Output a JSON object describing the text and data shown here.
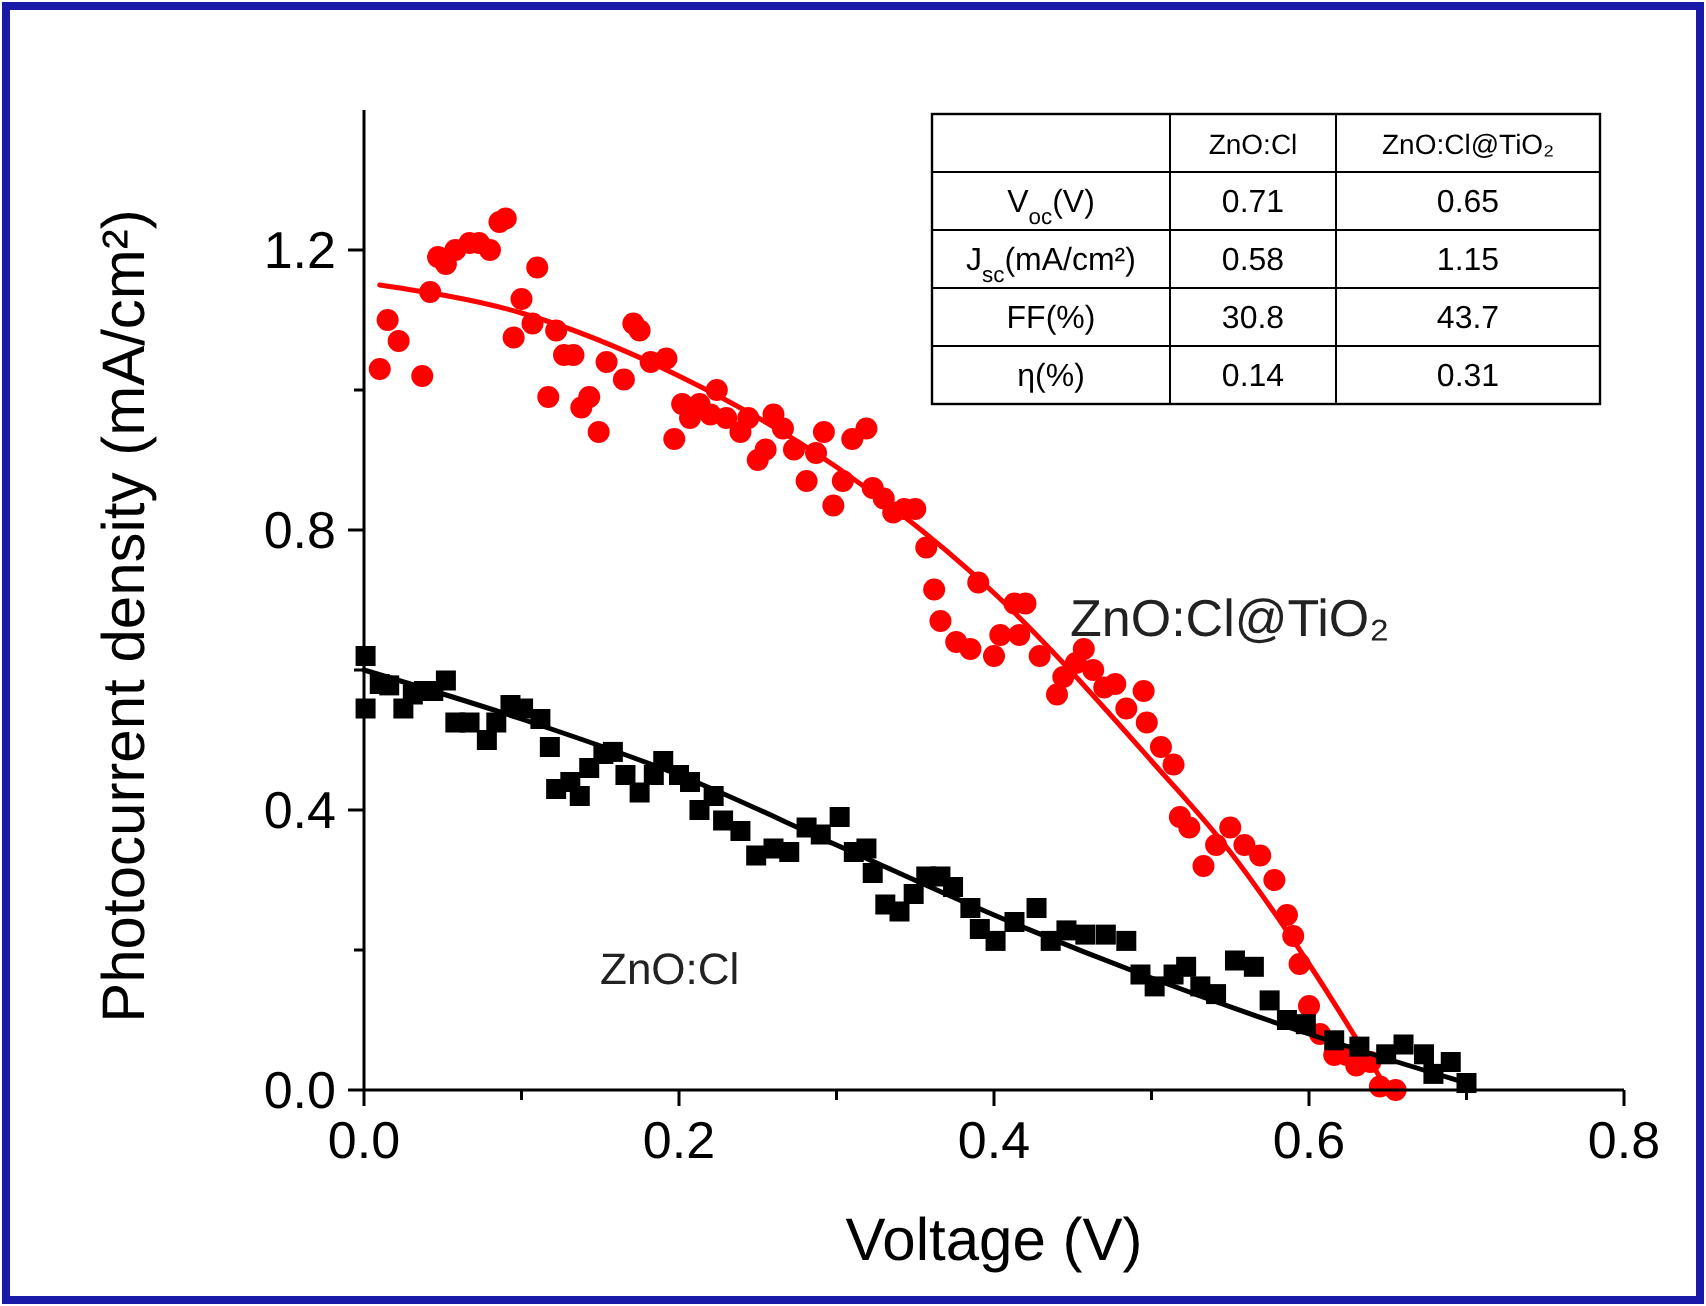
{
  "chart_data": {
    "type": "scatter",
    "xlabel": "Voltage (V)",
    "ylabel": "Photocurrent density (mA/cm²)",
    "xlim": [
      0,
      0.8
    ],
    "ylim": [
      0,
      1.4
    ],
    "xticks": [
      {
        "value": 0,
        "label": "0.0"
      },
      {
        "value": 0.1,
        "label": null
      },
      {
        "value": 0.2,
        "label": "0.2"
      },
      {
        "value": 0.3,
        "label": null
      },
      {
        "value": 0.4,
        "label": "0.4"
      },
      {
        "value": 0.5,
        "label": null
      },
      {
        "value": 0.6,
        "label": "0.6"
      },
      {
        "value": 0.7,
        "label": null
      },
      {
        "value": 0.8,
        "label": "0.8"
      }
    ],
    "yticks": [
      {
        "value": 0,
        "label": "0.0"
      },
      {
        "value": 0.2,
        "label": null
      },
      {
        "value": 0.4,
        "label": "0.4"
      },
      {
        "value": 0.6,
        "label": null
      },
      {
        "value": 0.8,
        "label": "0.8"
      },
      {
        "value": 1.0,
        "label": null
      },
      {
        "value": 1.2,
        "label": "1.2"
      }
    ],
    "grid": false,
    "series": [
      {
        "name": "ZnO:Cl@TiO₂",
        "marker": "circle",
        "color": "#ff0000",
        "x": [
          0.01,
          0.015,
          0.022,
          0.037,
          0.042,
          0.047,
          0.052,
          0.058,
          0.067,
          0.073,
          0.08,
          0.086,
          0.09,
          0.095,
          0.1,
          0.107,
          0.11,
          0.117,
          0.122,
          0.127,
          0.133,
          0.138,
          0.143,
          0.149,
          0.154,
          0.165,
          0.171,
          0.175,
          0.182,
          0.192,
          0.197,
          0.202,
          0.207,
          0.213,
          0.22,
          0.224,
          0.23,
          0.239,
          0.244,
          0.25,
          0.255,
          0.26,
          0.266,
          0.273,
          0.281,
          0.287,
          0.292,
          0.298,
          0.304,
          0.31,
          0.319,
          0.323,
          0.33,
          0.336,
          0.343,
          0.35,
          0.357,
          0.362,
          0.366,
          0.376,
          0.385,
          0.39,
          0.4,
          0.404,
          0.413,
          0.416,
          0.42,
          0.429,
          0.44,
          0.444,
          0.452,
          0.457,
          0.463,
          0.47,
          0.477,
          0.484,
          0.495,
          0.497,
          0.506,
          0.514,
          0.518,
          0.524,
          0.533,
          0.541,
          0.55,
          0.559,
          0.569,
          0.578,
          0.586,
          0.59,
          0.594,
          0.6,
          0.607,
          0.616,
          0.624,
          0.63,
          0.639,
          0.645,
          0.655
        ],
        "values": [
          1.03,
          1.1,
          1.07,
          1.02,
          1.14,
          1.19,
          1.18,
          1.2,
          1.21,
          1.21,
          1.2,
          1.24,
          1.245,
          1.075,
          1.13,
          1.095,
          1.175,
          0.99,
          1.085,
          1.05,
          1.05,
          0.975,
          0.99,
          0.94,
          1.04,
          1.015,
          1.095,
          1.085,
          1.04,
          1.045,
          0.93,
          0.98,
          0.96,
          0.98,
          0.965,
          1.0,
          0.96,
          0.94,
          0.96,
          0.9,
          0.915,
          0.965,
          0.945,
          0.915,
          0.87,
          0.91,
          0.94,
          0.835,
          0.87,
          0.93,
          0.945,
          0.86,
          0.845,
          0.825,
          0.83,
          0.83,
          0.775,
          0.715,
          0.67,
          0.64,
          0.63,
          0.725,
          0.62,
          0.65,
          0.695,
          0.65,
          0.695,
          0.62,
          0.565,
          0.59,
          0.61,
          0.63,
          0.6,
          0.575,
          0.58,
          0.545,
          0.57,
          0.525,
          0.49,
          0.465,
          0.39,
          0.375,
          0.32,
          0.35,
          0.375,
          0.35,
          0.335,
          0.3,
          0.25,
          0.22,
          0.18,
          0.12,
          0.08,
          0.05,
          0.05,
          0.035,
          0.04,
          0.005,
          0.0
        ]
      },
      {
        "type": "line",
        "color": "#ff0000",
        "x": [
          0.01,
          0.1,
          0.2,
          0.3,
          0.4,
          0.5,
          0.55,
          0.6,
          0.65
        ],
        "values": [
          1.15,
          1.11,
          1.02,
          0.89,
          0.71,
          0.47,
          0.34,
          0.18,
          0.0
        ]
      },
      {
        "name": "ZnO:Cl",
        "marker": "square",
        "color": "#000000",
        "x": [
          0.001,
          0.001,
          0.01,
          0.016,
          0.025,
          0.031,
          0.038,
          0.044,
          0.052,
          0.058,
          0.067,
          0.078,
          0.084,
          0.093,
          0.101,
          0.112,
          0.118,
          0.122,
          0.131,
          0.137,
          0.143,
          0.152,
          0.158,
          0.166,
          0.175,
          0.184,
          0.19,
          0.2,
          0.207,
          0.213,
          0.222,
          0.228,
          0.239,
          0.249,
          0.26,
          0.27,
          0.281,
          0.29,
          0.302,
          0.311,
          0.319,
          0.323,
          0.331,
          0.34,
          0.349,
          0.357,
          0.366,
          0.374,
          0.385,
          0.391,
          0.401,
          0.413,
          0.427,
          0.436,
          0.446,
          0.458,
          0.471,
          0.484,
          0.493,
          0.502,
          0.514,
          0.522,
          0.531,
          0.541,
          0.553,
          0.565,
          0.575,
          0.586,
          0.598,
          0.616,
          0.632,
          0.649,
          0.66,
          0.673,
          0.679,
          0.69,
          0.7
        ],
        "values": [
          0.62,
          0.545,
          0.58,
          0.578,
          0.545,
          0.565,
          0.57,
          0.57,
          0.585,
          0.525,
          0.525,
          0.5,
          0.525,
          0.55,
          0.545,
          0.53,
          0.49,
          0.43,
          0.44,
          0.42,
          0.46,
          0.48,
          0.483,
          0.45,
          0.425,
          0.45,
          0.47,
          0.45,
          0.44,
          0.4,
          0.42,
          0.385,
          0.37,
          0.335,
          0.345,
          0.34,
          0.375,
          0.365,
          0.39,
          0.34,
          0.345,
          0.31,
          0.265,
          0.255,
          0.28,
          0.305,
          0.305,
          0.29,
          0.26,
          0.23,
          0.213,
          0.24,
          0.26,
          0.213,
          0.228,
          0.222,
          0.222,
          0.213,
          0.165,
          0.148,
          0.165,
          0.176,
          0.148,
          0.137,
          0.185,
          0.176,
          0.128,
          0.1,
          0.094,
          0.071,
          0.062,
          0.051,
          0.065,
          0.051,
          0.023,
          0.04,
          0.01
        ]
      },
      {
        "type": "line",
        "color": "#000000",
        "x": [
          0,
          0.1,
          0.2,
          0.3,
          0.4,
          0.5,
          0.6,
          0.7
        ],
        "values": [
          0.6,
          0.53,
          0.45,
          0.35,
          0.25,
          0.16,
          0.08,
          0.01
        ]
      }
    ],
    "annotations": [
      "ZnO:Cl",
      "ZnO:Cl@TiO₂",
      "V$_{oc}$(V)",
      "0.71",
      "0.65",
      "J$_{sc}$(mA/cm²)",
      "0.58",
      "1.15",
      "FF(%)",
      "30.8",
      "43.7",
      "η(%)",
      "0.14",
      "0.31"
    ]
  }
}
